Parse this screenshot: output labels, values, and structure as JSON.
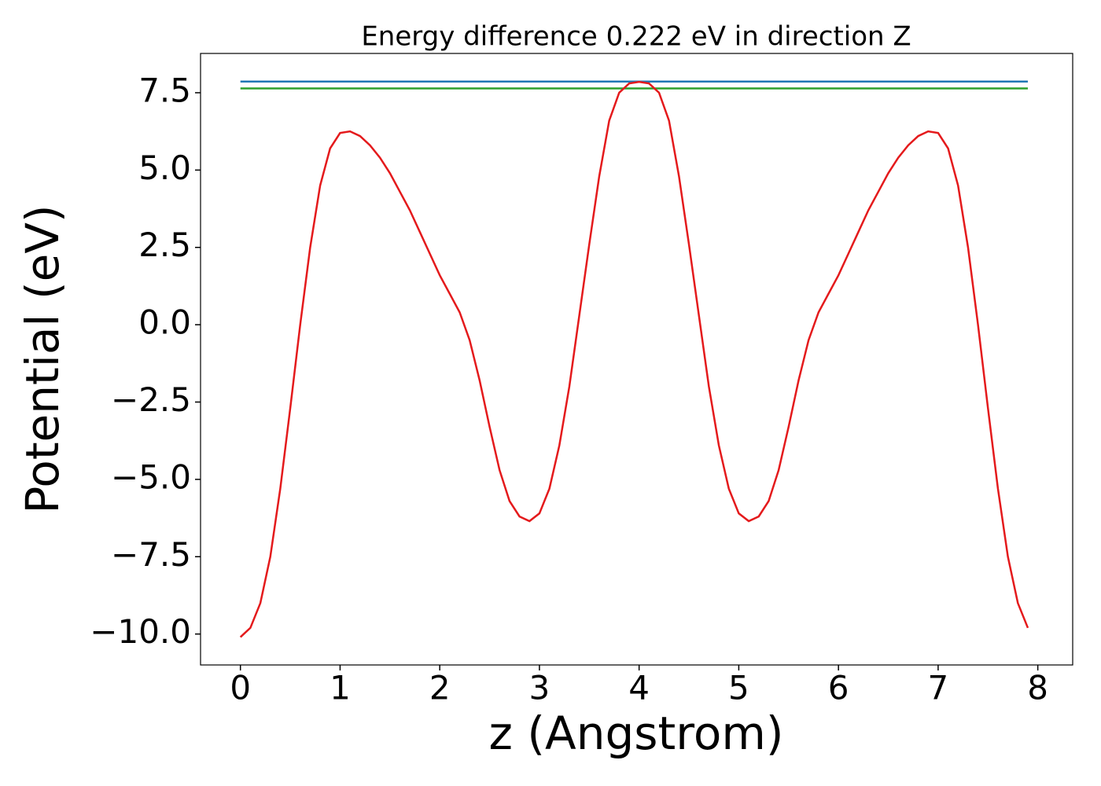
{
  "chart_data": {
    "type": "line",
    "title": "Energy difference 0.222 eV in direction Z",
    "x_label": "z (Angstrom)",
    "y_label": "Potential (eV)",
    "xlim": [
      -0.4,
      8.35
    ],
    "ylim": [
      -11,
      8.77
    ],
    "xticks": [
      0,
      1,
      2,
      3,
      4,
      5,
      6,
      7,
      8
    ],
    "yticks": [
      {
        "value": -10,
        "label": "−10.0"
      },
      {
        "value": -7.5,
        "label": "−7.5"
      },
      {
        "value": -5,
        "label": "−5.0"
      },
      {
        "value": -2.5,
        "label": "−2.5"
      },
      {
        "value": 0,
        "label": "0.0"
      },
      2.5,
      {
        "value": 5,
        "label": "5.0"
      },
      7.5
    ],
    "series": [
      {
        "color": "#1f77b4",
        "x": [
          0,
          7.9
        ],
        "values": [
          7.86,
          7.86
        ]
      },
      {
        "color": "#2ca02c",
        "x": [
          0,
          7.9
        ],
        "values": [
          7.64,
          7.64
        ]
      },
      {
        "color": "#e41a1c",
        "x": [
          0,
          0.1,
          0.2,
          0.3,
          0.4,
          0.5,
          0.6,
          0.7,
          0.8,
          0.9,
          1.0,
          1.1,
          1.2,
          1.3,
          1.4,
          1.5,
          1.6,
          1.7,
          1.8,
          1.9,
          2.0,
          2.1,
          2.2,
          2.3,
          2.4,
          2.5,
          2.6,
          2.7,
          2.8,
          2.9,
          3.0,
          3.1,
          3.2,
          3.3,
          3.4,
          3.5,
          3.6,
          3.7,
          3.8,
          3.9,
          4.0,
          4.1,
          4.2,
          4.3,
          4.4,
          4.5,
          4.6,
          4.7,
          4.8,
          4.9,
          5.0,
          5.1,
          5.2,
          5.3,
          5.4,
          5.5,
          5.6,
          5.7,
          5.8,
          5.9,
          6.0,
          6.1,
          6.2,
          6.3,
          6.4,
          6.5,
          6.6,
          6.7,
          6.8,
          6.9,
          7.0,
          7.1,
          7.2,
          7.3,
          7.4,
          7.5,
          7.6,
          7.7,
          7.8,
          7.9
        ],
        "values": [
          -10.1,
          -9.8,
          -9.0,
          -7.5,
          -5.3,
          -2.7,
          0.0,
          2.5,
          4.5,
          5.7,
          6.2,
          6.25,
          6.1,
          5.8,
          5.4,
          4.9,
          4.3,
          3.7,
          3.0,
          2.3,
          1.6,
          1.0,
          0.4,
          -0.5,
          -1.8,
          -3.3,
          -4.7,
          -5.7,
          -6.2,
          -6.35,
          -6.1,
          -5.3,
          -3.9,
          -2.0,
          0.3,
          2.6,
          4.8,
          6.6,
          7.5,
          7.8,
          7.85,
          7.8,
          7.5,
          6.6,
          4.8,
          2.6,
          0.3,
          -2.0,
          -3.9,
          -5.3,
          -6.1,
          -6.35,
          -6.2,
          -5.7,
          -4.7,
          -3.3,
          -1.8,
          -0.5,
          0.4,
          1.0,
          1.6,
          2.3,
          3.0,
          3.7,
          4.3,
          4.9,
          5.4,
          5.8,
          6.1,
          6.25,
          6.2,
          5.7,
          4.5,
          2.5,
          0.0,
          -2.7,
          -5.3,
          -7.5,
          -9.0,
          -9.8
        ]
      }
    ]
  }
}
